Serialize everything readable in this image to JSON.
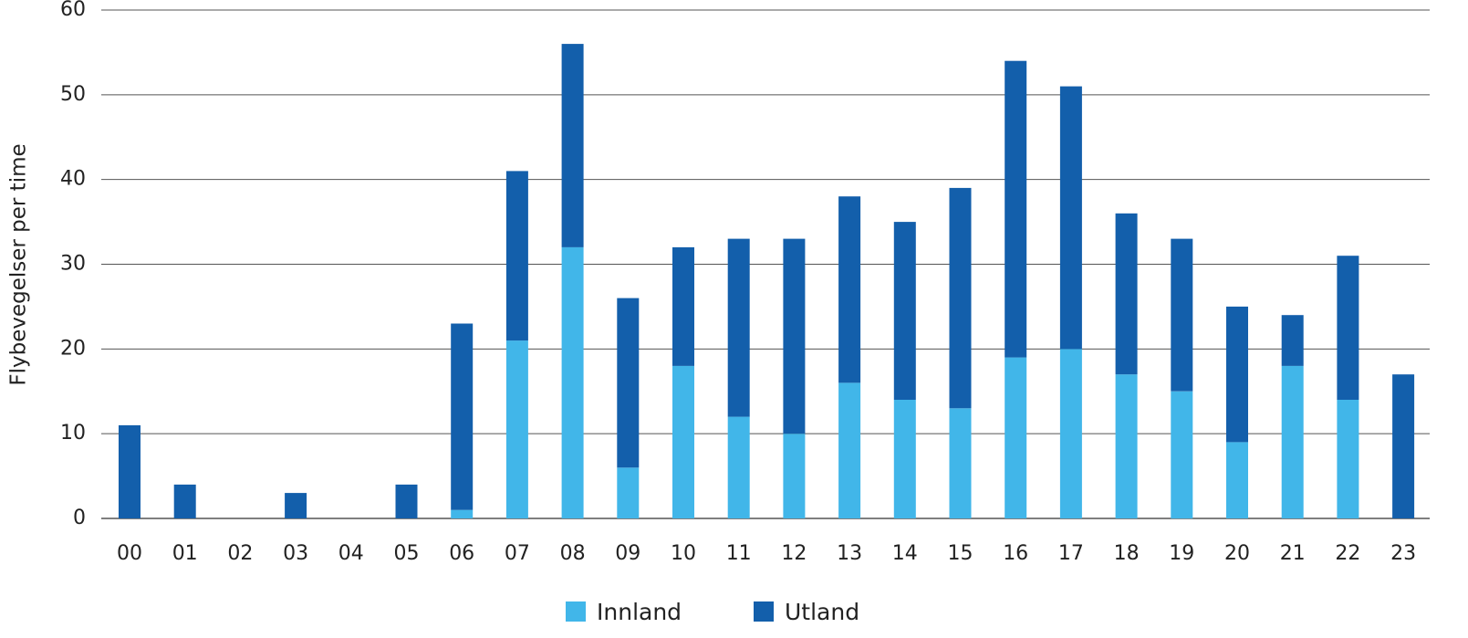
{
  "colors": {
    "innland": "#41b6e9",
    "utland": "#135fab",
    "grid": "#555555"
  },
  "chart_data": {
    "type": "bar",
    "stacked": true,
    "title": "",
    "xlabel": "",
    "ylabel": "Flybevegelser per time",
    "ylim": [
      0,
      60
    ],
    "yticks": [
      0,
      10,
      20,
      30,
      40,
      50,
      60
    ],
    "grid": true,
    "legend_position": "bottom-center",
    "categories": [
      "00",
      "01",
      "02",
      "03",
      "04",
      "05",
      "06",
      "07",
      "08",
      "09",
      "10",
      "11",
      "12",
      "13",
      "14",
      "15",
      "16",
      "17",
      "18",
      "19",
      "20",
      "21",
      "22",
      "23"
    ],
    "series": [
      {
        "name": "Innland",
        "values": [
          0,
          0,
          0,
          0,
          0,
          0,
          1,
          21,
          32,
          6,
          18,
          12,
          10,
          16,
          14,
          13,
          19,
          20,
          17,
          15,
          9,
          18,
          14,
          0
        ]
      },
      {
        "name": "Utland",
        "values": [
          11,
          4,
          0,
          3,
          0,
          4,
          22,
          20,
          24,
          20,
          14,
          21,
          23,
          22,
          21,
          26,
          35,
          31,
          19,
          18,
          16,
          6,
          17,
          17
        ]
      }
    ]
  }
}
